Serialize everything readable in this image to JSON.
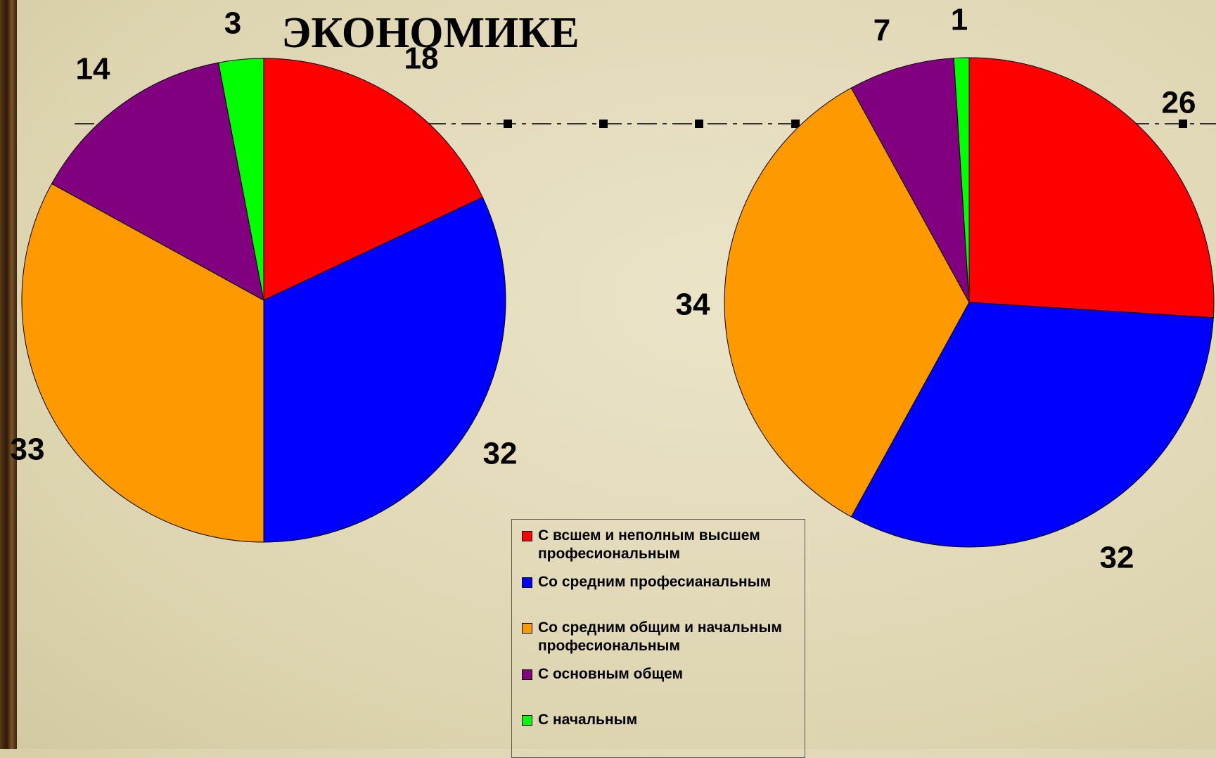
{
  "chart_data": [
    {
      "type": "pie",
      "title": "ЭКОНОМИКЕ",
      "categories": [
        "С всшем и неполным высшем професиональным",
        "Со средним професианальным",
        "Со средним общим и начальным професиональным",
        "С основным общем",
        "С начальным"
      ],
      "colors": [
        "#ff0000",
        "#0000ff",
        "#ff9900",
        "#800080",
        "#00ff00"
      ],
      "values": [
        18,
        32,
        33,
        14,
        3
      ]
    },
    {
      "type": "pie",
      "colors": [
        "#ff0000",
        "#0000ff",
        "#ff9900",
        "#800080",
        "#00ff00"
      ],
      "values": [
        26,
        32,
        34,
        7,
        1
      ]
    }
  ]
}
